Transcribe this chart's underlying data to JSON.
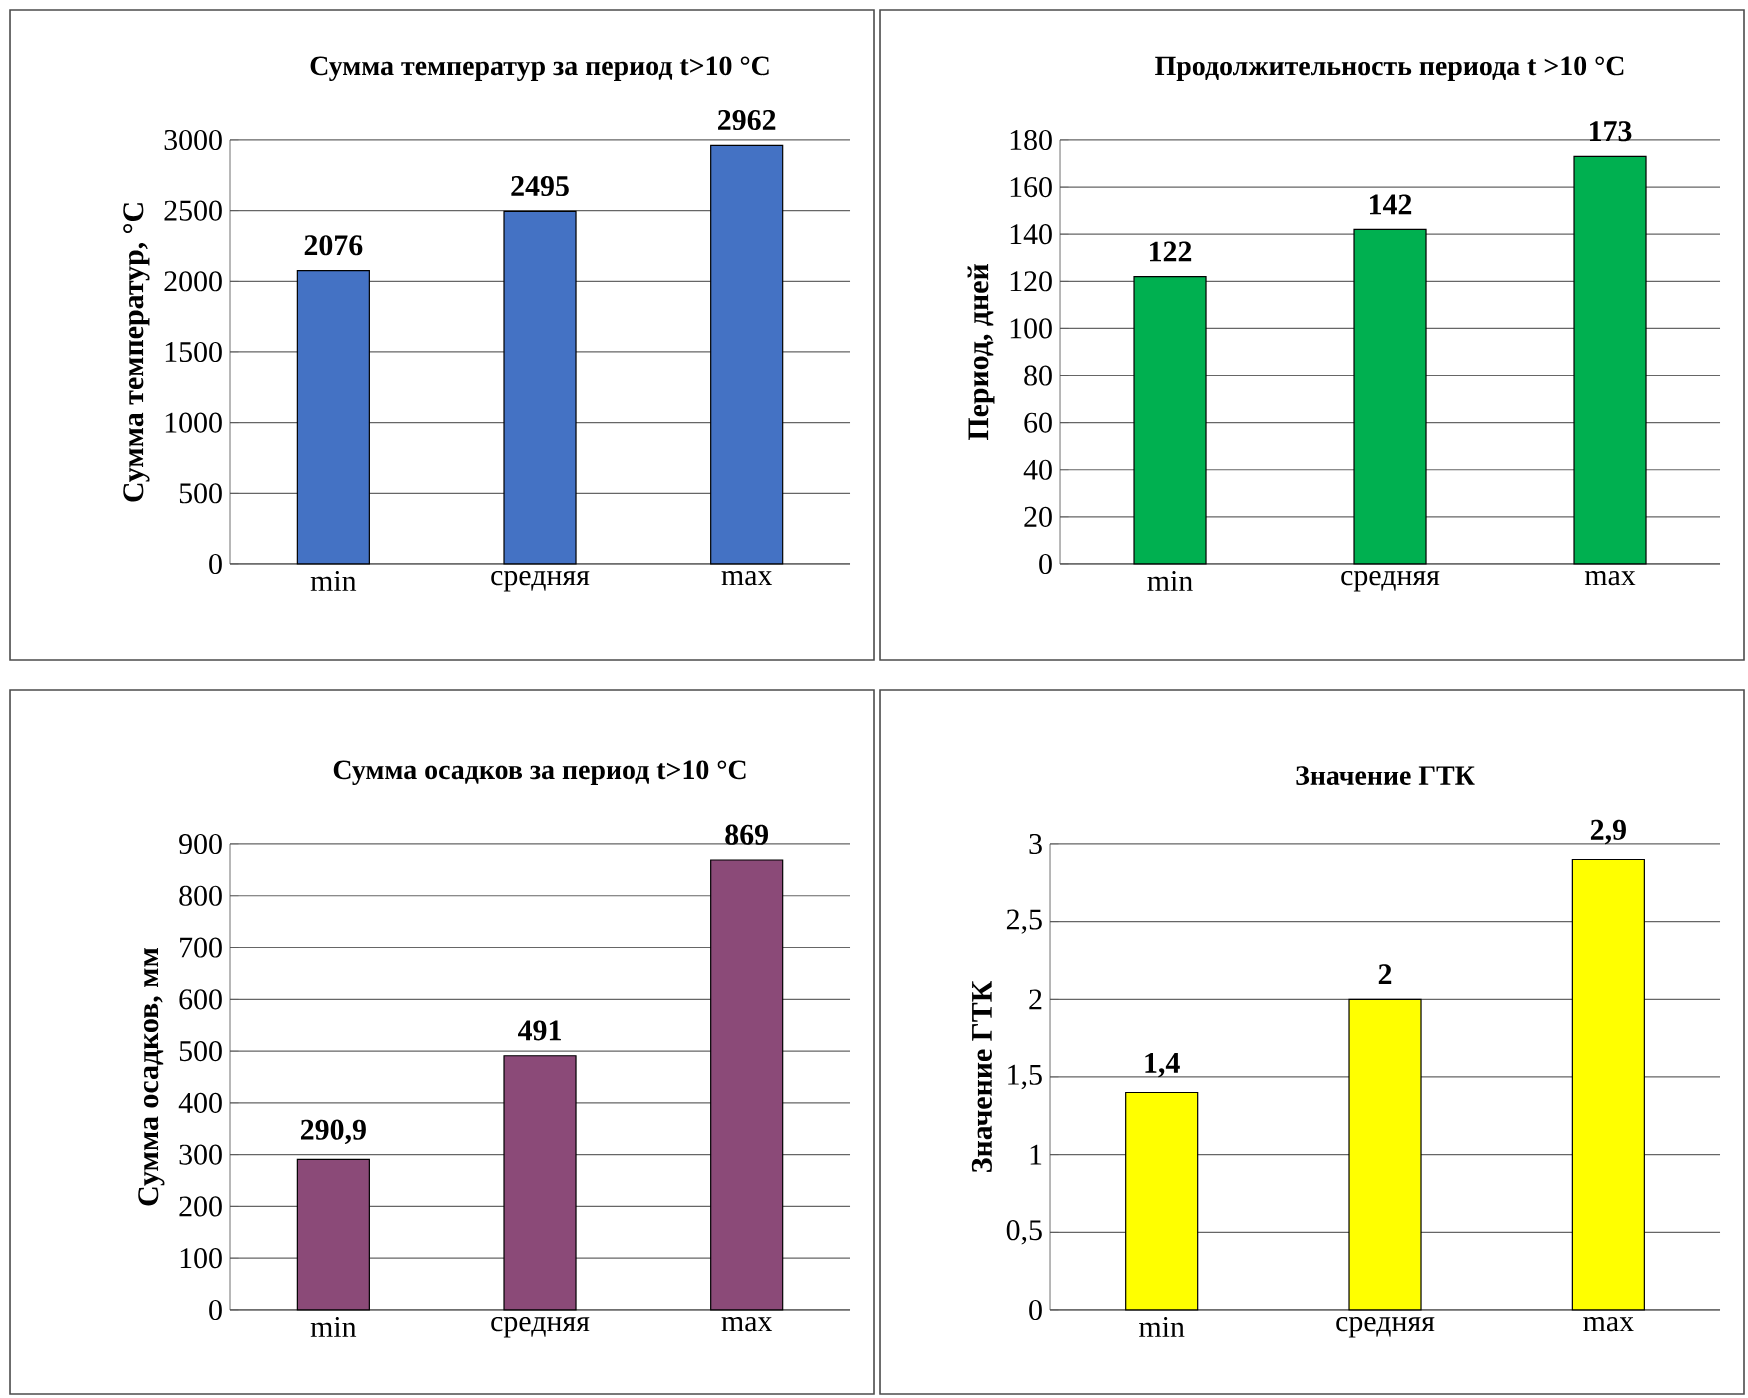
{
  "chart_data": [
    {
      "type": "bar",
      "title": "Сумма температур за период t>10 °С",
      "ylabel": "Сумма температур, °С",
      "categories": [
        "min",
        "средняя",
        "max"
      ],
      "values": [
        2076,
        2495,
        2962
      ],
      "color": "#4472c4",
      "ylim": [
        0,
        3000
      ],
      "yticks": [
        0,
        500,
        1000,
        1500,
        2000,
        2500,
        3000
      ],
      "grid": "y",
      "data_labels": true
    },
    {
      "type": "bar",
      "title": "Продолжительность периода t >10 °С",
      "ylabel": "Период, дней",
      "categories": [
        "min",
        "средняя",
        "max"
      ],
      "values": [
        122,
        142,
        173
      ],
      "color": "#00b050",
      "ylim": [
        0,
        180
      ],
      "yticks": [
        0,
        20,
        40,
        60,
        80,
        100,
        120,
        140,
        160,
        180
      ],
      "grid": "y",
      "data_labels": true
    },
    {
      "type": "bar",
      "title": "Сумма осадков за период t>10 °С",
      "ylabel": "Сумма осадков, мм",
      "categories": [
        "min",
        "средняя",
        "max"
      ],
      "values": [
        290.9,
        491,
        869
      ],
      "value_labels": [
        "290,9",
        "491",
        "869"
      ],
      "color": "#8b4a78",
      "ylim": [
        0,
        900
      ],
      "yticks": [
        0,
        100,
        200,
        300,
        400,
        500,
        600,
        700,
        800,
        900
      ],
      "grid": "y"
    },
    {
      "type": "bar",
      "title": "Значение ГТК",
      "ylabel": "Значение ГТК",
      "categories": [
        "min",
        "средняя",
        "max"
      ],
      "values": [
        1.4,
        2,
        2.9
      ],
      "value_labels": [
        "1,4",
        "2",
        "2,9"
      ],
      "color": "#ffff00",
      "ylim": [
        0,
        3
      ],
      "yticks": [
        0,
        {
          "value": 0.5,
          "label": "0,5"
        },
        1,
        {
          "value": 1.5,
          "label": "1,5"
        },
        2,
        {
          "value": 2.5,
          "label": "2,5"
        },
        3
      ],
      "grid": "y"
    }
  ]
}
